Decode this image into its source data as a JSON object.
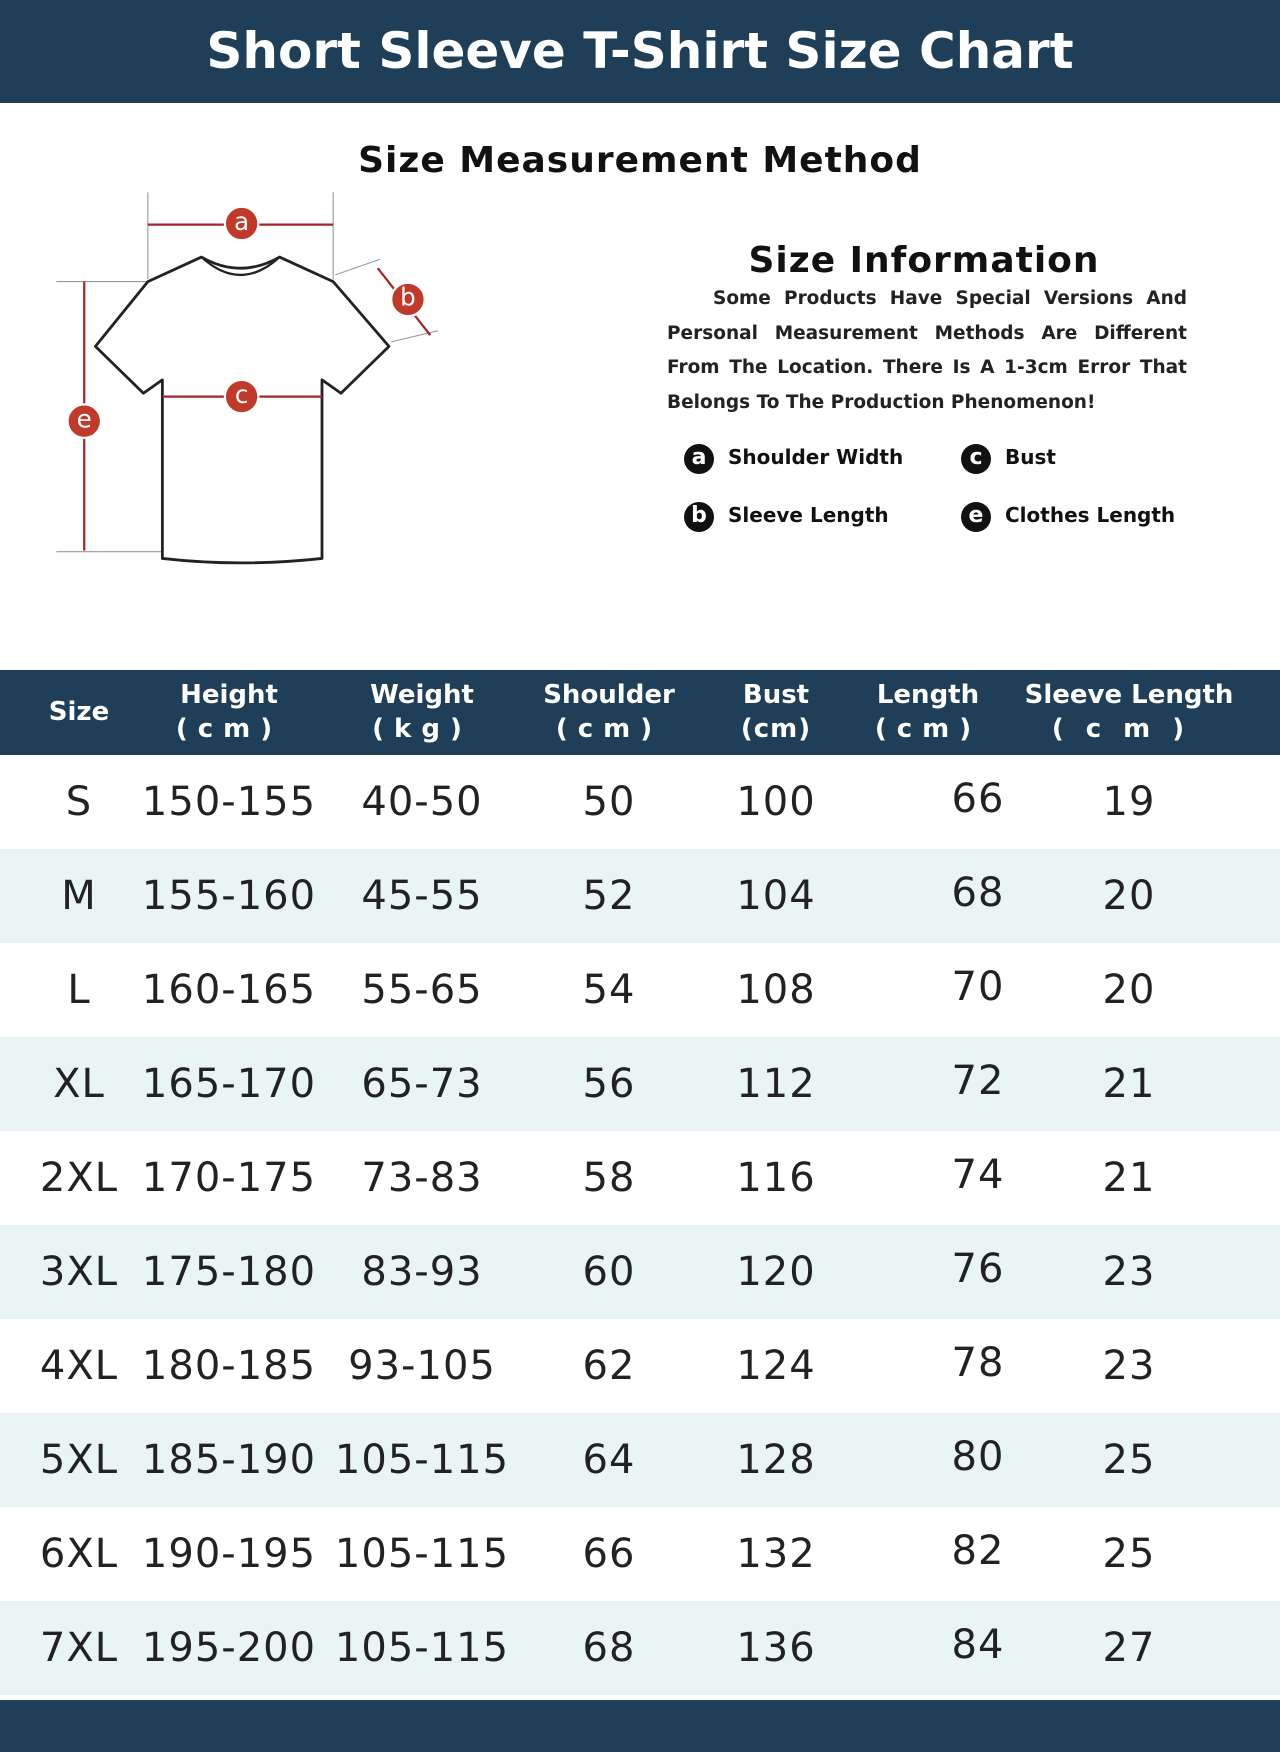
{
  "header": {
    "title": "Short Sleeve T-Shirt Size Chart"
  },
  "method": {
    "title": "Size Measurement Method",
    "labels": [
      "a",
      "b",
      "c",
      "e"
    ]
  },
  "info": {
    "title": "Size Information",
    "text": "Some Products Have Special Versions And Personal Measurement Methods Are Different From The Location. There Is A 1-3cm Error That Belongs To The Production Phenomenon!",
    "legend": [
      {
        "key": "a",
        "label": "Shoulder Width"
      },
      {
        "key": "c",
        "label": "Bust"
      },
      {
        "key": "b",
        "label": "Sleeve Length"
      },
      {
        "key": "e",
        "label": "Clothes Length"
      }
    ]
  },
  "table": {
    "columns": [
      {
        "name": "Size"
      },
      {
        "name": "Height",
        "unit": "(cm)"
      },
      {
        "name": "Weight",
        "unit": "(kg)"
      },
      {
        "name": "Shoulder",
        "unit": "(cm)"
      },
      {
        "name": "Bust",
        "unit": "(cm)"
      },
      {
        "name": "Length",
        "unit": "(cm)"
      },
      {
        "name": "Sleeve Length",
        "unit": "(cm)"
      }
    ],
    "rows": [
      [
        "S",
        "150-155",
        "40-50",
        50,
        100,
        66,
        19
      ],
      [
        "M",
        "155-160",
        "45-55",
        52,
        104,
        68,
        20
      ],
      [
        "L",
        "160-165",
        "55-65",
        54,
        108,
        70,
        20
      ],
      [
        "XL",
        "165-170",
        "65-73",
        56,
        112,
        72,
        21
      ],
      [
        "2XL",
        "170-175",
        "73-83",
        58,
        116,
        74,
        21
      ],
      [
        "3XL",
        "175-180",
        "83-93",
        60,
        120,
        76,
        23
      ],
      [
        "4XL",
        "180-185",
        "93-105",
        62,
        124,
        78,
        23
      ],
      [
        "5XL",
        "185-190",
        "105-115",
        64,
        128,
        80,
        25
      ],
      [
        "6XL",
        "190-195",
        "105-115",
        66,
        132,
        82,
        25
      ],
      [
        "7XL",
        "195-200",
        "105-115",
        68,
        136,
        84,
        27
      ]
    ]
  }
}
